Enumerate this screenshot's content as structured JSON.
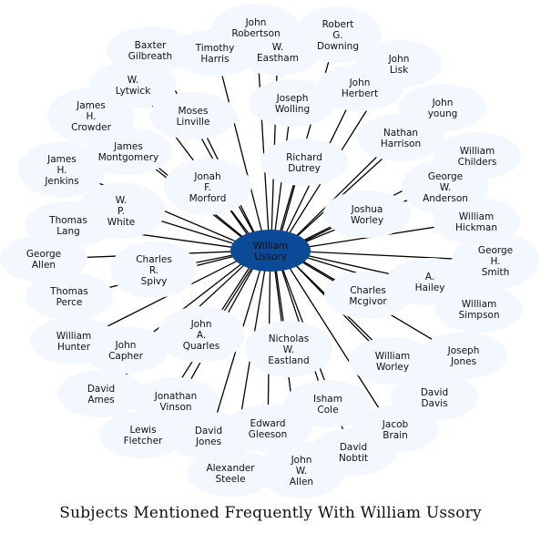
{
  "title": "Subjects Mentioned Frequently With William Ussory",
  "colors": {
    "center_fill": "#0b4a96",
    "node_fill": "#f3f8ff",
    "edge": "#000000",
    "text": "#111111"
  },
  "center": {
    "name": "William Ussory"
  },
  "nodes": [
    "John Robertson",
    "Robert G. Downing",
    "Baxter Gilbreath",
    "Timothy Harris",
    "W. Eastham",
    "John Lisk",
    "W. Lytwick",
    "John Herbert",
    "Joseph Wolling",
    "John young",
    "James H. Crowder",
    "Moses Linville",
    "Nathan Harrison",
    "James Montgomery",
    "Richard Dutrey",
    "William Childers",
    "James H. Jenkins",
    "Jonah F. Morford",
    "George W. Anderson",
    "W. P. White",
    "Joshua Worley",
    "William Hickman",
    "Thomas Lang",
    "George H. Smith",
    "George Allen",
    "Charles R. Spivy",
    "A. Hailey",
    "Thomas Perce",
    "Charles Mcgivor",
    "William Simpson",
    "William Hunter",
    "John A. Quarles",
    "Nicholas W. Eastland",
    "John Capher",
    "Joseph Jones",
    "William Worley",
    "David Ames",
    "Jonathan Vinson",
    "Isham Cole",
    "David Davis",
    "Lewis Fletcher",
    "David Jones",
    "Edward Gleeson",
    "Jacob Brain",
    "David Nobtit",
    "Alexander Steele",
    "John W. Allen"
  ]
}
